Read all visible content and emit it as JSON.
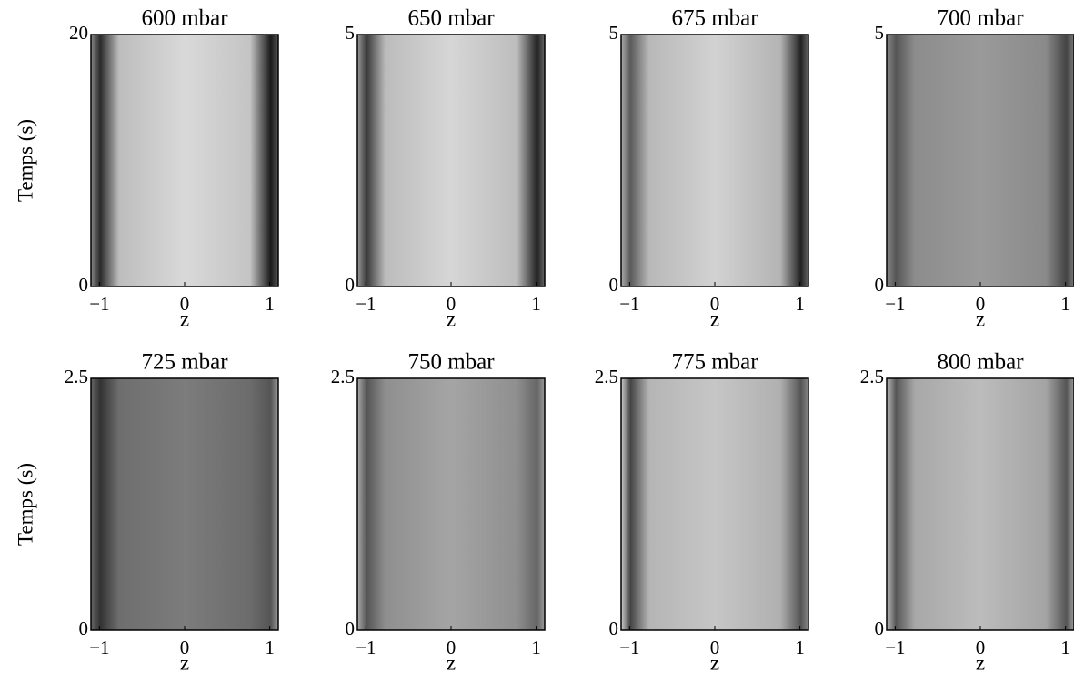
{
  "chart_data": [
    {
      "type": "image",
      "title": "600 mbar",
      "xlabel": "z",
      "ylabel": "Temps (s)",
      "xlim": [
        -1.1,
        1.1
      ],
      "xticks": [
        {
          "value": -1,
          "label": "−1"
        },
        0,
        1
      ],
      "ylim": [
        0,
        20
      ],
      "yticks": [
        0,
        20
      ]
    },
    {
      "type": "image",
      "title": "650 mbar",
      "xlabel": "z",
      "xlim": [
        -1.1,
        1.1
      ],
      "xticks": [
        {
          "value": -1,
          "label": "−1"
        },
        0,
        1
      ],
      "ylim": [
        0,
        5
      ],
      "yticks": [
        0,
        5
      ]
    },
    {
      "type": "image",
      "title": "675 mbar",
      "xlabel": "z",
      "xlim": [
        -1.1,
        1.1
      ],
      "xticks": [
        {
          "value": -1,
          "label": "−1"
        },
        0,
        1
      ],
      "ylim": [
        0,
        5
      ],
      "yticks": [
        0,
        5
      ]
    },
    {
      "type": "image",
      "title": "700 mbar",
      "xlabel": "z",
      "xlim": [
        -1.1,
        1.1
      ],
      "xticks": [
        {
          "value": -1,
          "label": "−1"
        },
        0,
        1
      ],
      "ylim": [
        0,
        5
      ],
      "yticks": [
        0,
        5
      ]
    },
    {
      "type": "image",
      "title": "725 mbar",
      "xlabel": "z",
      "ylabel": "Temps (s)",
      "xlim": [
        -1.1,
        1.1
      ],
      "xticks": [
        {
          "value": -1,
          "label": "−1"
        },
        0,
        1
      ],
      "ylim": [
        0,
        2.5
      ],
      "yticks": [
        0,
        2.5
      ]
    },
    {
      "type": "image",
      "title": "750 mbar",
      "xlabel": "z",
      "xlim": [
        -1.1,
        1.1
      ],
      "xticks": [
        {
          "value": -1,
          "label": "−1"
        },
        0,
        1
      ],
      "ylim": [
        0,
        2.5
      ],
      "yticks": [
        0,
        2.5
      ]
    },
    {
      "type": "image",
      "title": "775 mbar",
      "xlabel": "z",
      "xlim": [
        -1.1,
        1.1
      ],
      "xticks": [
        {
          "value": -1,
          "label": "−1"
        },
        0,
        1
      ],
      "ylim": [
        0,
        2.5
      ],
      "yticks": [
        0,
        2.5
      ]
    },
    {
      "type": "image",
      "title": "800 mbar",
      "xlabel": "z",
      "xlim": [
        -1.1,
        1.1
      ],
      "xticks": [
        {
          "value": -1,
          "label": "−1"
        },
        0,
        1
      ],
      "ylim": [
        0,
        2.5
      ],
      "yticks": [
        0,
        2.5
      ]
    }
  ]
}
